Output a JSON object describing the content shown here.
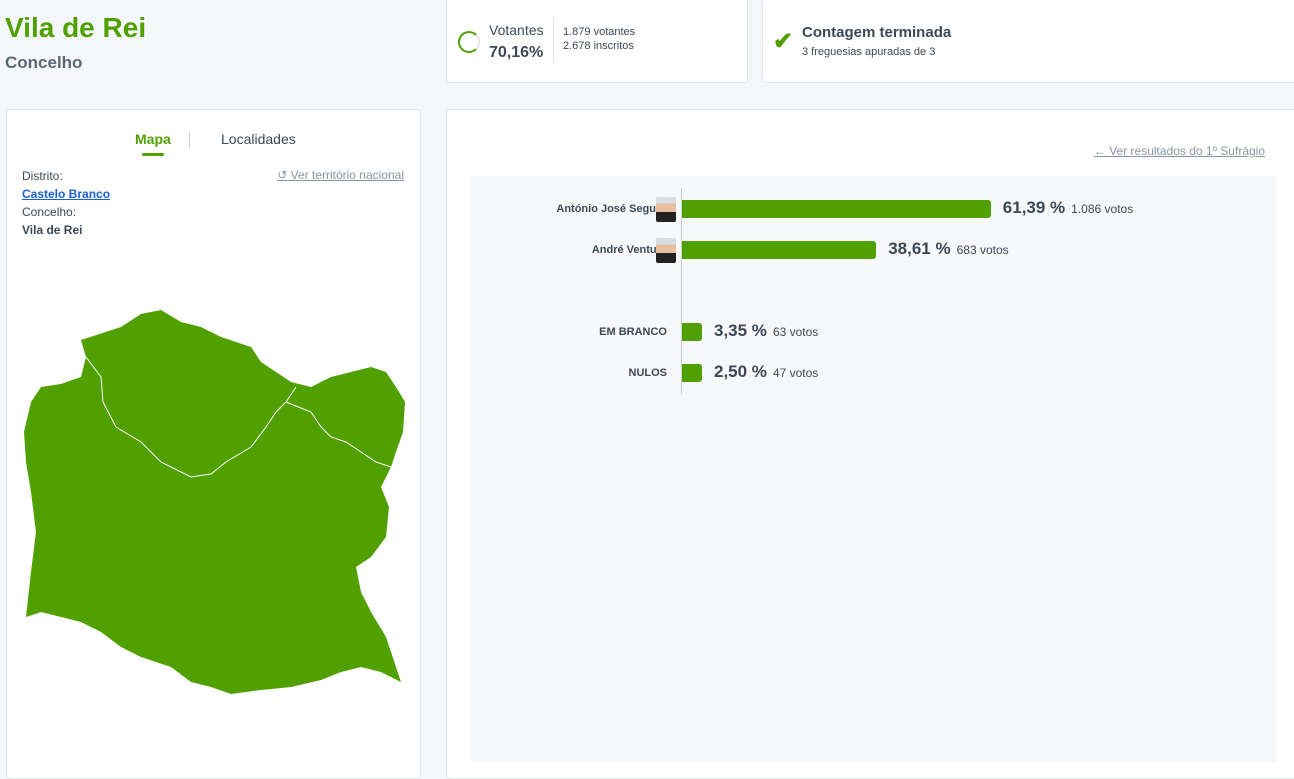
{
  "header": {
    "title": "Vila de Rei",
    "subtitle": "Concelho"
  },
  "turnout": {
    "label": "Votantes",
    "percent": "70,16%",
    "percent_value": 70.16,
    "voters": "1.879 votantes",
    "registered": "2.678 inscritos"
  },
  "count": {
    "title": "Contagem terminada",
    "detail": "3 freguesias apuradas de 3"
  },
  "left_panel": {
    "tabs": [
      {
        "label": "Mapa"
      },
      {
        "label": "Localidades"
      }
    ],
    "district_label": "Distrito:",
    "district": "Castelo Branco",
    "council_label": "Concelho:",
    "council": "Vila de Rei",
    "national_link": "Ver território nacional"
  },
  "map": {
    "fill": "#4fa000"
  },
  "results": {
    "back_link": "Ver resultados do 1º Sufrágio",
    "rows": [
      {
        "name": "António José Seguro",
        "percent": 61.39,
        "percent_label": "61,39 %",
        "votes": "1.086 votos",
        "photo": true
      },
      {
        "name": "André Ventura",
        "percent": 38.61,
        "percent_label": "38,61 %",
        "votes": "683 votos",
        "photo": true
      },
      {
        "name": "EM BRANCO",
        "percent": 3.35,
        "percent_label": "3,35 %",
        "votes": "63 votos",
        "photo": false
      },
      {
        "name": "NULOS",
        "percent": 2.5,
        "percent_label": "2,50 %",
        "votes": "47 votos",
        "photo": false
      }
    ]
  },
  "colors": {
    "accent": "#4fa000"
  }
}
